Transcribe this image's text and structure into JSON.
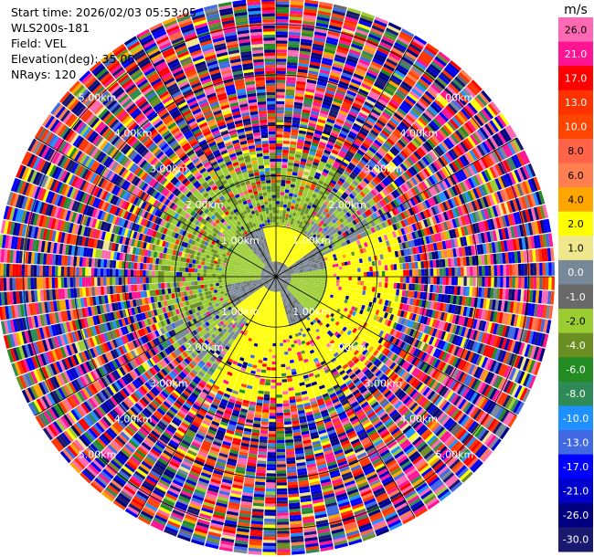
{
  "header": {
    "start_time": "Start time: 2026/02/03 05:53:05",
    "instrument": "WLS200s-181",
    "field": "Field: VEL",
    "elevation": "Elevation(deg): 35.00",
    "nrays": "NRays: 120"
  },
  "chart_data": {
    "type": "polar-ppi",
    "field": "VEL",
    "units": "m/s",
    "n_rays": 120,
    "max_range_km": 5.5,
    "range_rings_km": [
      1.0,
      2.0,
      3.0,
      4.0,
      5.0
    ],
    "ring_labels": [
      "1.00km",
      "2.00km",
      "3.00km",
      "4.00km",
      "5.00km"
    ],
    "spoke_azimuths_deg": [
      0,
      30,
      60,
      90,
      120,
      150,
      180,
      210,
      240,
      270,
      300,
      330
    ],
    "colorbar": {
      "unit_label": "m/s",
      "tick_labels": [
        "26.0",
        "21.0",
        "17.0",
        "13.0",
        "10.0",
        "8.0",
        "6.0",
        "4.0",
        "2.0",
        "1.0",
        "0.0",
        "-1.0",
        "-2.0",
        "-4.0",
        "-6.0",
        "-8.0",
        "-10.0",
        "-13.0",
        "-17.0",
        "-21.0",
        "-26.0",
        "-30.0"
      ],
      "colors": [
        "#ff69b4",
        "#ff1493",
        "#ff0000",
        "#ff3300",
        "#ff4500",
        "#ff6347",
        "#ff7f50",
        "#ffa500",
        "#ffff00",
        "#f0e68c",
        "#778899",
        "#696969",
        "#9acd32",
        "#6b8e23",
        "#228b22",
        "#2e8b57",
        "#1e90ff",
        "#4169e1",
        "#0000ff",
        "#0000cd",
        "#000080",
        "#191970"
      ]
    },
    "pattern": {
      "inner_ring_km": [
        0.0,
        1.0
      ],
      "inner_values": [
        0.0,
        0.5,
        3.0,
        -1.5
      ],
      "mid_ring_km": [
        1.0,
        2.5
      ],
      "mid_values": [
        -1.5,
        3.0,
        -3.0,
        0.5
      ],
      "outer_ring_km": [
        2.5,
        5.5
      ],
      "outer_values": "noise"
    }
  }
}
